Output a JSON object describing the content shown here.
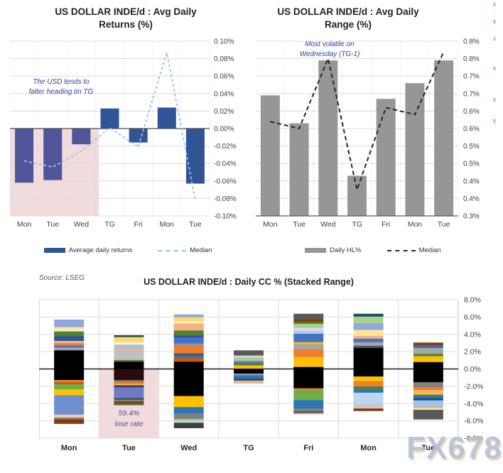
{
  "source_note": "Source: LSEG",
  "watermark": "FX678",
  "edge_marks": [
    {
      "text": "5",
      "color": "#E87070",
      "y": 4
    },
    {
      "text": "5",
      "color": "#E87070",
      "y": 28
    },
    {
      "text": "3",
      "color": "#6FA8DC",
      "y": 52
    },
    {
      "text": "5",
      "color": "#E87070",
      "y": 94
    },
    {
      "text": "5",
      "color": "#E87070",
      "y": 138
    },
    {
      "text": "5",
      "color": "#E87070",
      "y": 168
    }
  ],
  "chart_data": [
    {
      "id": "avg-daily-returns",
      "type": "bar",
      "title": "US DOLLAR INDE/d : Avg Daily Returns (%)",
      "categories": [
        "Mon",
        "Tue",
        "Wed",
        "TG",
        "Fri",
        "Mon",
        "Tue"
      ],
      "series": [
        {
          "name": "Average daily returns",
          "type": "bar",
          "values": [
            -0.062,
            -0.059,
            -0.018,
            0.023,
            -0.016,
            0.024,
            -0.063
          ]
        },
        {
          "name": "Median",
          "type": "line",
          "values": [
            -0.037,
            -0.044,
            -0.026,
            0.001,
            -0.021,
            0.087,
            -0.082
          ]
        }
      ],
      "ylim": [
        -0.1,
        0.1
      ],
      "y_tick_step": 0.02,
      "y_ticks": [
        "0.10%",
        "0.08%",
        "0.06%",
        "0.04%",
        "0.02%",
        "0.00%",
        "-0.02%",
        "-0.04%",
        "-0.06%",
        "-0.08%",
        "-0.10%"
      ],
      "annotation": [
        "The USD tends to",
        "falter heading tin TG"
      ],
      "highlight": {
        "category_span": [
          "Mon",
          "Wed"
        ],
        "from": 0,
        "to": -0.1,
        "color": "#F2DBDC"
      },
      "highlight_bar_count": 3,
      "colors": {
        "bar": "#2F5597",
        "bar_highlighted": "#50549A",
        "median": "#9DC3E6"
      },
      "grid": true,
      "legend_position": "bottom",
      "xlabel": "",
      "ylabel": ""
    },
    {
      "id": "avg-daily-range",
      "type": "bar",
      "title": "US DOLLAR INDE/d : Avg Daily Range (%)",
      "categories": [
        "Mon",
        "Tue",
        "Wed",
        "TG",
        "Fri",
        "Mon",
        "Tue"
      ],
      "series": [
        {
          "name": "Daily HL%",
          "type": "bar",
          "values": [
            0.645,
            0.565,
            0.745,
            0.415,
            0.635,
            0.68,
            0.745
          ]
        },
        {
          "name": "Median",
          "type": "line",
          "values": [
            0.57,
            0.55,
            0.75,
            0.375,
            0.61,
            0.59,
            0.77
          ]
        }
      ],
      "ylim": [
        0.3,
        0.8
      ],
      "y_tick_step": 0.05,
      "y_ticks": [
        "0.8%",
        "0.8%",
        "0.7%",
        "0.7%",
        "0.6%",
        "0.6%",
        "0.5%",
        "0.5%",
        "0.4%",
        "0.4%",
        "0.3%"
      ],
      "annotation": [
        "Most volatile on",
        "Wednesday (TG-1)"
      ],
      "colors": {
        "bar": "#969696",
        "median": "#262626"
      },
      "grid": true,
      "legend_position": "bottom",
      "xlabel": "",
      "ylabel": ""
    },
    {
      "id": "daily-cc-stacked-range",
      "type": "stacked-bar",
      "title": "US DOLLAR INDE/d : Daily CC % (Stacked Range)",
      "categories": [
        "Mon",
        "Tue",
        "Wed",
        "TG",
        "Fri",
        "Mon",
        "Tue"
      ],
      "ylim": [
        -8.0,
        8.0
      ],
      "y_tick_step": 2.0,
      "y_ticks": [
        "8.0%",
        "6.0%",
        "4.0%",
        "2.0%",
        "0.0%",
        "-2.0%",
        "-4.0%",
        "-6.0%",
        "-8.0%"
      ],
      "highlight": {
        "column_index": 1,
        "labels": [
          "59.4%",
          "lose rate"
        ],
        "color": "#F2DBDC",
        "text_color": "#584E97"
      },
      "grid": true,
      "xlabel": "",
      "ylabel": "",
      "bars": [
        {
          "day": "Mon",
          "top": 5.7,
          "segments": [
            [
              "#8EA9DB",
              0.87
            ],
            [
              "#FFE699",
              0.27
            ],
            [
              "#FFF2CC",
              0.22
            ],
            [
              "#548235",
              0.55
            ],
            [
              "#2E5597",
              0.55
            ],
            [
              "#F4B183",
              0.27
            ],
            [
              "#ED7D31",
              0.27
            ],
            [
              "#4472C4",
              0.22
            ],
            [
              "#A6A6A6",
              0.33
            ],
            [
              "#000000",
              3.42
            ],
            [
              "#ED7D31",
              0.27
            ],
            [
              "#C55A11",
              0.22
            ],
            [
              "#70AD47",
              0.6
            ],
            [
              "#FFC000",
              0.68
            ],
            [
              "#6D8FCE",
              2.24
            ],
            [
              "#F8CBAD",
              0.33
            ],
            [
              "#808080",
              0.22
            ],
            [
              "#843C0C",
              0.49
            ]
          ]
        },
        {
          "day": "Tue",
          "top": 3.9,
          "segments": [
            [
              "#1F4E5F",
              0.22
            ],
            [
              "#FFD966",
              0.6
            ],
            [
              "#FFF2CC",
              0.27
            ],
            [
              "#9DC3E6",
              0.41
            ],
            [
              "#F4B183",
              0.22
            ],
            [
              "#BFBFBF",
              1.15
            ],
            [
              "#548235",
              0.19
            ],
            [
              "#000000",
              0.85
            ],
            [
              "#2B0B0B",
              1.28
            ],
            [
              "#808080",
              0.22
            ],
            [
              "#ED7D31",
              0.22
            ],
            [
              "#FFC000",
              0.16
            ],
            [
              "#2E3192",
              0.22
            ],
            [
              "#6F7BBF",
              1.23
            ],
            [
              "#44546A",
              0.22
            ],
            [
              "#808080",
              0.19
            ],
            [
              "#843C0C",
              0.19
            ],
            [
              "#4E6B30",
              0.22
            ]
          ]
        },
        {
          "day": "Wed",
          "top": 6.3,
          "segments": [
            [
              "#8EA9DB",
              0.33
            ],
            [
              "#FFD966",
              0.49
            ],
            [
              "#FFF2CC",
              0.22
            ],
            [
              "#F4B183",
              0.82
            ],
            [
              "#548235",
              0.55
            ],
            [
              "#2F5597",
              0.27
            ],
            [
              "#4472C4",
              0.66
            ],
            [
              "#8497B0",
              0.27
            ],
            [
              "#ED7D31",
              0.9
            ],
            [
              "#44546A",
              0.22
            ],
            [
              "#2E75B6",
              0.25
            ],
            [
              "#C55A11",
              0.49
            ],
            [
              "#000000",
              3.96
            ],
            [
              "#FFC000",
              1.28
            ],
            [
              "#2E75B6",
              0.71
            ],
            [
              "#808080",
              0.66
            ],
            [
              "#A9D18E",
              0.22
            ],
            [
              "#BDD7EE",
              0.22
            ],
            [
              "#3F3F3F",
              0.6
            ]
          ]
        },
        {
          "day": "TG",
          "top": 2.15,
          "segments": [
            [
              "#595959",
              0.6
            ],
            [
              "#D9D9D9",
              0.22
            ],
            [
              "#A9D18E",
              0.19
            ],
            [
              "#9DC3E6",
              0.19
            ],
            [
              "#BF8F00",
              0.16
            ],
            [
              "#4472C4",
              0.19
            ],
            [
              "#548235",
              0.19
            ],
            [
              "#FFC000",
              0.38
            ],
            [
              "#000000",
              0.55
            ],
            [
              "#8497B0",
              0.22
            ],
            [
              "#2E75B6",
              0.38
            ],
            [
              "#1F4E79",
              0.22
            ],
            [
              "#F4B183",
              0.33
            ]
          ]
        },
        {
          "day": "Fri",
          "top": 6.38,
          "segments": [
            [
              "#595959",
              0.68
            ],
            [
              "#843C0C",
              0.27
            ],
            [
              "#548235",
              0.22
            ],
            [
              "#A9D18E",
              0.46
            ],
            [
              "#D6DCE4",
              0.36
            ],
            [
              "#B4C7E7",
              0.33
            ],
            [
              "#4472C4",
              0.96
            ],
            [
              "#FFC000",
              0.22
            ],
            [
              "#A6A6A6",
              0.6
            ],
            [
              "#ED7D31",
              0.9
            ],
            [
              "#FFC000",
              1.15
            ],
            [
              "#000000",
              2.46
            ],
            [
              "#ED7D31",
              0.22
            ],
            [
              "#70AD47",
              1.15
            ],
            [
              "#2E75B6",
              0.96
            ],
            [
              "#808080",
              0.36
            ],
            [
              "#44546A",
              0.19
            ],
            [
              "#F8CBAD",
              0.14
            ]
          ]
        },
        {
          "day": "Mon",
          "top": 6.38,
          "segments": [
            [
              "#1F4E5F",
              0.33
            ],
            [
              "#A9D18E",
              0.77
            ],
            [
              "#8EA9DB",
              0.77
            ],
            [
              "#FFE699",
              0.68
            ],
            [
              "#F4B183",
              0.33
            ],
            [
              "#4472C4",
              0.41
            ],
            [
              "#A6A6A6",
              0.41
            ],
            [
              "#44546A",
              0.27
            ],
            [
              "#000000",
              3.28
            ],
            [
              "#FFC000",
              0.55
            ],
            [
              "#ED7D31",
              0.6
            ],
            [
              "#548235",
              0.36
            ],
            [
              "#2E75B6",
              0.36
            ],
            [
              "#BDD7EE",
              1.28
            ],
            [
              "#C9C9C9",
              0.55
            ],
            [
              "#843C0C",
              0.27
            ]
          ]
        },
        {
          "day": "Tue",
          "top": 3.05,
          "segments": [
            [
              "#843C0C",
              0.3
            ],
            [
              "#2E75B6",
              0.33
            ],
            [
              "#A6A6A6",
              0.68
            ],
            [
              "#548235",
              0.27
            ],
            [
              "#FFC000",
              0.68
            ],
            [
              "#000000",
              2.32
            ],
            [
              "#808080",
              0.55
            ],
            [
              "#ED7D31",
              0.36
            ],
            [
              "#F4B183",
              0.27
            ],
            [
              "#FFC000",
              0.27
            ],
            [
              "#2E75B6",
              0.38
            ],
            [
              "#1F4E79",
              0.27
            ],
            [
              "#9DC3E6",
              0.63
            ],
            [
              "#BFBFBF",
              0.27
            ],
            [
              "#FFE699",
              0.19
            ],
            [
              "#595959",
              1.09
            ]
          ]
        }
      ]
    }
  ]
}
